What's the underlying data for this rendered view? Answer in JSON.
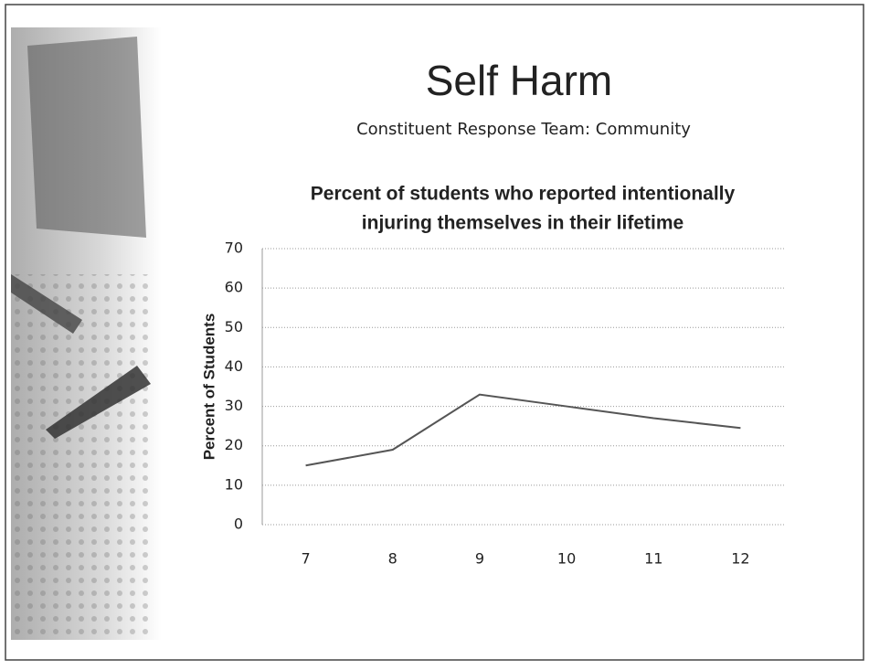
{
  "header": {
    "title": "Self Harm",
    "subtitle": "Constituent Response Team: Community"
  },
  "chart_data": {
    "type": "line",
    "title": [
      "Percent of students who reported intentionally",
      "injuring themselves in their lifetime"
    ],
    "y_label": "Percent of Students",
    "categories": [
      "7",
      "8",
      "9",
      "10",
      "11",
      "12"
    ],
    "values": [
      15,
      19,
      33,
      30,
      27,
      24.5
    ],
    "color": "#555555",
    "ylim": [
      0,
      70
    ],
    "yticks": [
      0,
      10,
      20,
      30,
      40,
      50,
      60,
      70
    ],
    "grid": true
  }
}
